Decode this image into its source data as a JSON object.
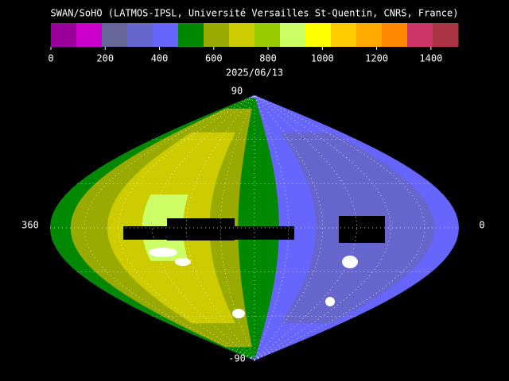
{
  "title": "SWAN/SoHO (LATMOS-IPSL, Université Versailles St-Quentin, CNRS, France)",
  "colorbar": {
    "colors": [
      "#990099",
      "#cc00cc",
      "#666699",
      "#6666cc",
      "#6666ff",
      "#008800",
      "#99aa00",
      "#cccc00",
      "#99cc00",
      "#ccff66",
      "#ffff00",
      "#ffcc00",
      "#ffaa00",
      "#ff8800",
      "#cc3366",
      "#aa3344"
    ],
    "lim": [
      0,
      1500
    ],
    "ticks": [
      0,
      200,
      400,
      600,
      800,
      1000,
      1200,
      1400
    ]
  },
  "date": "2025/06/13",
  "map": {
    "lat_top": "90",
    "lat_bottom": "-90",
    "lon_left": "360",
    "lon_right": "0"
  }
}
